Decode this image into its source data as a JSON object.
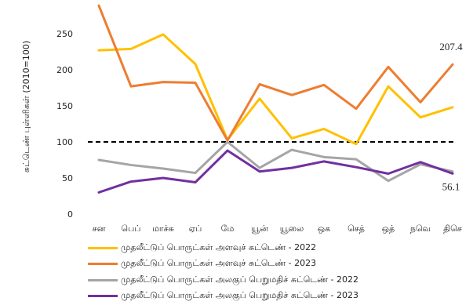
{
  "chart_data": {
    "type": "line",
    "ylabel": "சுட்டெண் புள்ளிகள் (2010=100)",
    "ylim": [
      0,
      300
    ],
    "yticks": [
      "0",
      "50",
      "100",
      "150",
      "200",
      "250"
    ],
    "ytick_values": [
      0,
      50,
      100,
      150,
      200,
      250
    ],
    "categories": [
      "சன",
      "பெப்",
      "மாச்சு",
      "ஏப்",
      "மே",
      "யூன்",
      "யூலை",
      "ஒக",
      "செத்",
      "ஒத்",
      "நவெ",
      "திசெ"
    ],
    "reference_line": {
      "value": 100,
      "style": "dashed",
      "color": "#000000"
    },
    "series": [
      {
        "name": "முதலீட்டுப் பொருட்கள் அளவுச் சுட்டெண் - 2022",
        "color": "#FFC000",
        "values": [
          227,
          229,
          249,
          208,
          103,
          160,
          105,
          118,
          97,
          177,
          134,
          148
        ]
      },
      {
        "name": "முதலீட்டுப் பொருட்கள் அளவுச் சுட்டெண் - 2023",
        "color": "#ED7D31",
        "values": [
          289,
          177,
          183,
          182,
          102,
          180,
          165,
          179,
          146,
          204,
          155,
          207.4
        ]
      },
      {
        "name": "முதலீட்டுப் பொருட்கள் அலகுப் பெறுமதிச் சுட்டெண் - 2022",
        "color": "#A5A5A5",
        "values": [
          75,
          68,
          63,
          57,
          100,
          64,
          89,
          79,
          76,
          46,
          69,
          59
        ]
      },
      {
        "name": "முதலீட்டுப் பொருட்கள் அலகுப் பெறுமதிச் சுட்டெண் - 2023",
        "color": "#7030A0",
        "values": [
          30,
          45,
          50,
          44,
          88,
          59,
          64,
          73,
          65,
          56,
          72,
          56.1
        ]
      }
    ],
    "data_labels": [
      {
        "series": 1,
        "index": 11,
        "text": "207.4"
      },
      {
        "series": 3,
        "index": 11,
        "text": "56.1"
      }
    ],
    "legend_position": "bottom",
    "grid": false
  }
}
